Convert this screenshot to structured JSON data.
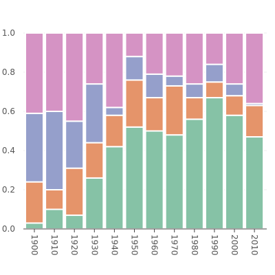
{
  "chart_data": {
    "type": "bar",
    "stacked": true,
    "normalized": true,
    "categories": [
      "1900",
      "1910",
      "1920",
      "1930",
      "1940",
      "1950",
      "1960",
      "1970",
      "1980",
      "1990",
      "2000",
      "2010"
    ],
    "series": [
      {
        "color": "#86c2a6",
        "values": [
          0.03,
          0.1,
          0.07,
          0.26,
          0.42,
          0.52,
          0.5,
          0.48,
          0.56,
          0.67,
          0.58,
          0.47
        ]
      },
      {
        "color": "#e5946a",
        "values": [
          0.21,
          0.1,
          0.24,
          0.18,
          0.16,
          0.24,
          0.17,
          0.25,
          0.11,
          0.08,
          0.1,
          0.16
        ]
      },
      {
        "color": "#959fcb",
        "values": [
          0.35,
          0.4,
          0.24,
          0.3,
          0.04,
          0.12,
          0.12,
          0.05,
          0.07,
          0.09,
          0.06,
          0.01
        ]
      },
      {
        "color": "#d593c4",
        "values": [
          0.41,
          0.4,
          0.45,
          0.26,
          0.38,
          0.12,
          0.21,
          0.22,
          0.26,
          0.16,
          0.26,
          0.36
        ]
      }
    ],
    "ylim": [
      0,
      1
    ],
    "yticks": [
      "0.0",
      "0.2",
      "0.4",
      "0.6",
      "0.8",
      "1.0"
    ],
    "xtick_rotation": "vertical",
    "grid": "horizontal",
    "legend": "none"
  }
}
